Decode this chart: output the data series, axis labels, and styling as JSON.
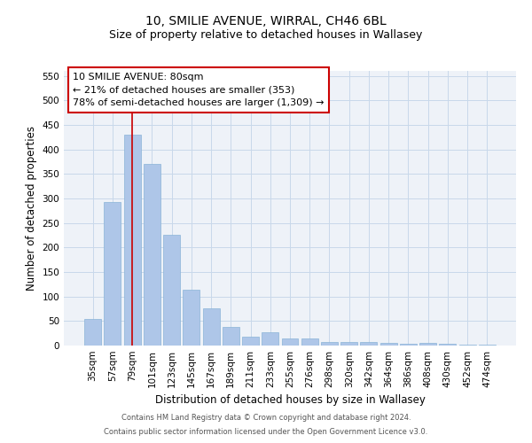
{
  "title": "10, SMILIE AVENUE, WIRRAL, CH46 6BL",
  "subtitle": "Size of property relative to detached houses in Wallasey",
  "xlabel": "Distribution of detached houses by size in Wallasey",
  "ylabel": "Number of detached properties",
  "footnote1": "Contains HM Land Registry data © Crown copyright and database right 2024.",
  "footnote2": "Contains public sector information licensed under the Open Government Licence v3.0.",
  "categories": [
    "35sqm",
    "57sqm",
    "79sqm",
    "101sqm",
    "123sqm",
    "145sqm",
    "167sqm",
    "189sqm",
    "211sqm",
    "233sqm",
    "255sqm",
    "276sqm",
    "298sqm",
    "320sqm",
    "342sqm",
    "364sqm",
    "386sqm",
    "408sqm",
    "430sqm",
    "452sqm",
    "474sqm"
  ],
  "values": [
    55,
    293,
    430,
    370,
    225,
    113,
    75,
    38,
    18,
    28,
    15,
    15,
    8,
    8,
    8,
    5,
    3,
    5,
    3,
    2,
    2
  ],
  "bar_color": "#aec6e8",
  "bar_edge_color": "#8ab4d8",
  "property_line_x": 2,
  "property_line_color": "#cc0000",
  "annotation_line1": "10 SMILIE AVENUE: 80sqm",
  "annotation_line2": "← 21% of detached houses are smaller (353)",
  "annotation_line3": "78% of semi-detached houses are larger (1,309) →",
  "annotation_box_color": "#cc0000",
  "ylim": [
    0,
    560
  ],
  "yticks": [
    0,
    50,
    100,
    150,
    200,
    250,
    300,
    350,
    400,
    450,
    500,
    550
  ],
  "grid_color": "#c8d8ea",
  "background_color": "#eef2f8",
  "title_fontsize": 10,
  "subtitle_fontsize": 9,
  "axis_label_fontsize": 8.5,
  "tick_fontsize": 7.5,
  "annotation_fontsize": 8,
  "footnote_fontsize": 6
}
